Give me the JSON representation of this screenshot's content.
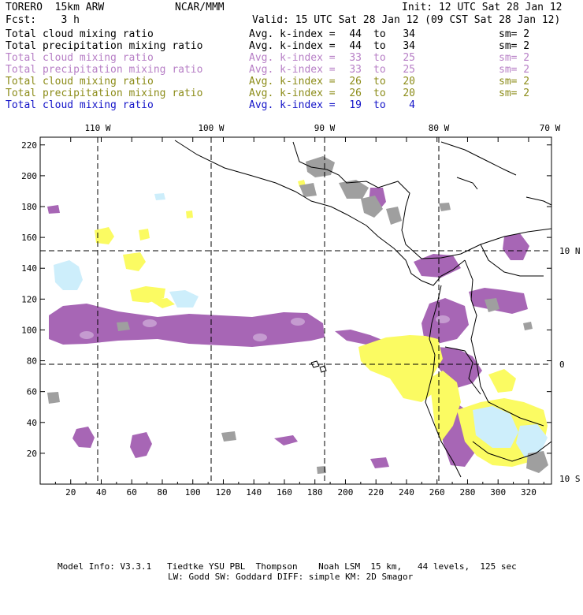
{
  "header": {
    "model": "TORERO  15km ARW",
    "org": "NCAR/MMM",
    "init": "Init: 12 UTC Sat 28 Jan 12",
    "fcst": "Fcst:    3 h",
    "valid": "Valid: 15 UTC Sat 28 Jan 12 (09 CST Sat 28 Jan 12)"
  },
  "legend": [
    {
      "name": "Total cloud mixing ratio",
      "avg": "Avg. k-index =",
      "hi": "44",
      "to": "to",
      "lo": "34",
      "sm": "sm= 2",
      "color": "#000000"
    },
    {
      "name": "Total precipitation mixing ratio",
      "avg": "Avg. k-index =",
      "hi": "44",
      "to": "to",
      "lo": "34",
      "sm": "sm= 2",
      "color": "#000000"
    },
    {
      "name": "Total cloud mixing ratio",
      "avg": "Avg. k-index =",
      "hi": "33",
      "to": "to",
      "lo": "25",
      "sm": "sm= 2",
      "color": "#b77fc6"
    },
    {
      "name": "Total precipitation mixing ratio",
      "avg": "Avg. k-index =",
      "hi": "33",
      "to": "to",
      "lo": "25",
      "sm": "sm= 2",
      "color": "#b77fc6"
    },
    {
      "name": "Total cloud mixing ratio",
      "avg": "Avg. k-index =",
      "hi": "26",
      "to": "to",
      "lo": "20",
      "sm": "sm= 2",
      "color": "#8c8c19"
    },
    {
      "name": "Total precipitation mixing ratio",
      "avg": "Avg. k-index =",
      "hi": "26",
      "to": "to",
      "lo": "20",
      "sm": "sm= 2",
      "color": "#8c8c19"
    },
    {
      "name": "Total cloud mixing ratio",
      "avg": "Avg. k-index =",
      "hi": "19",
      "to": "to",
      "lo": "4",
      "sm": "",
      "color": "#1414c8"
    }
  ],
  "map": {
    "lon_labels": [
      "110 W",
      "100 W",
      "90 W",
      "80 W",
      "70 W"
    ],
    "lat_labels": [
      "10 N",
      "0",
      "10 S"
    ],
    "y_ticks": [
      "220",
      "200",
      "180",
      "160",
      "140",
      "120",
      "100",
      "80",
      "60",
      "40",
      "20"
    ],
    "x_ticks": [
      "20",
      "40",
      "60",
      "80",
      "100",
      "120",
      "140",
      "160",
      "180",
      "200",
      "220",
      "240",
      "260",
      "280",
      "300",
      "320"
    ],
    "grid_range": {
      "x": [
        0,
        335
      ],
      "y": [
        0,
        225
      ]
    },
    "colors": {
      "purple": "#a766b5",
      "gray": "#9f9f9f",
      "yellow": "#fbfb62",
      "lightblue": "#cdeefb",
      "coast": "#000000"
    }
  },
  "footer": {
    "line1": "Model Info: V3.3.1   Tiedtke YSU PBL  Thompson    Noah LSM  15 km,   44 levels,  125 sec",
    "line2": "LW: Godd SW: Goddard DIFF: simple KM: 2D Smagor"
  }
}
